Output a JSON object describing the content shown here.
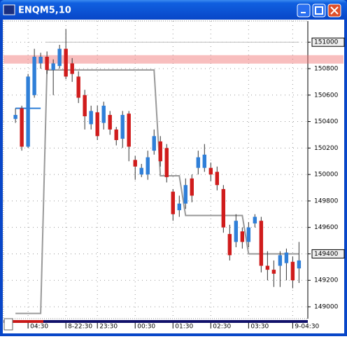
{
  "window_title": "ENQM5,10",
  "chart_data": {
    "type": "candlestick",
    "x": [
      0,
      1,
      2,
      3,
      4,
      5,
      6,
      7,
      8,
      9,
      10,
      11,
      12,
      13,
      14,
      15,
      16,
      17,
      18,
      19,
      20,
      21,
      22,
      23,
      24,
      25,
      26,
      27,
      28,
      29,
      30,
      31,
      32,
      33,
      34,
      35,
      36,
      37,
      38,
      39,
      40,
      41,
      42,
      43,
      44,
      45
    ],
    "open": [
      150420,
      150500,
      150210,
      150600,
      150840,
      150890,
      150790,
      150820,
      150950,
      150840,
      150740,
      150600,
      150380,
      150470,
      150390,
      150450,
      150340,
      150270,
      150460,
      150110,
      150000,
      150000,
      150180,
      150250,
      150200,
      149870,
      149730,
      149780,
      149970,
      150050,
      150050,
      150050,
      150020,
      149890,
      149550,
      149490,
      149570,
      149490,
      149630,
      149650,
      149310,
      149280,
      149310,
      149330,
      149340,
      149290
    ],
    "high": [
      150500,
      150520,
      150760,
      150950,
      150920,
      150930,
      150870,
      150980,
      151100,
      150880,
      150780,
      150640,
      150520,
      150520,
      150550,
      150480,
      150360,
      150480,
      150480,
      150140,
      150080,
      150180,
      150340,
      150290,
      150230,
      149890,
      149840,
      149970,
      150000,
      150180,
      150230,
      150090,
      150060,
      149920,
      149620,
      149700,
      149600,
      149640,
      149700,
      149680,
      149420,
      149350,
      149420,
      149440,
      149380,
      149490
    ],
    "low": [
      150390,
      150180,
      150200,
      150580,
      150800,
      150760,
      150600,
      150800,
      150720,
      150700,
      150540,
      150340,
      150340,
      150260,
      150340,
      150300,
      150220,
      150200,
      150100,
      149960,
      149980,
      149960,
      150150,
      150060,
      149940,
      149650,
      149680,
      149740,
      149790,
      150000,
      150020,
      149950,
      149880,
      149560,
      149350,
      149450,
      149440,
      149450,
      149600,
      149260,
      149200,
      149150,
      149150,
      149200,
      149140,
      149180
    ],
    "close": [
      150450,
      150210,
      150740,
      150890,
      150890,
      150790,
      150840,
      150950,
      150740,
      150760,
      150580,
      150440,
      150480,
      150290,
      150520,
      150340,
      150260,
      150450,
      150210,
      150060,
      150050,
      150130,
      150290,
      150100,
      149980,
      149700,
      149780,
      149920,
      149840,
      150130,
      150150,
      150000,
      149920,
      149600,
      149390,
      149650,
      149490,
      149600,
      149680,
      149310,
      149280,
      149250,
      149390,
      149410,
      149200,
      149350
    ],
    "up_color": "#2f7fd8",
    "down_color": "#d01c1c",
    "lines": [
      {
        "color": "#999999",
        "values": [
          148950,
          148950,
          148950,
          148950,
          148950,
          150790,
          150790,
          150790,
          150790,
          150790,
          150790,
          150790,
          150790,
          150790,
          150790,
          150790,
          150790,
          150790,
          150790,
          150790,
          150790,
          150790,
          150790,
          149990,
          149990,
          149990,
          149990,
          149690,
          149690,
          149690,
          149690,
          149690,
          149690,
          149690,
          149690,
          149690,
          149690,
          149400,
          149400,
          149400,
          149400,
          149400,
          149400,
          149400,
          149400,
          149400
        ]
      },
      {
        "color": "#2f7fd8",
        "values": [
          150500,
          150500,
          150500,
          150500,
          150500,
          null,
          null,
          null,
          null,
          null,
          null,
          null,
          null,
          null,
          null,
          null,
          null,
          null,
          null,
          null,
          null,
          null,
          null,
          null,
          null,
          null,
          null,
          null,
          null,
          null,
          null,
          null,
          null,
          null,
          null,
          null,
          null,
          null,
          null,
          null,
          null,
          null,
          null,
          null,
          null,
          null
        ]
      }
    ],
    "reference_lines": [
      {
        "value": 151000,
        "color": "#bbbbbb"
      }
    ],
    "bands": [
      {
        "value": 150870,
        "color": "rgba(240,110,110,0.45)"
      }
    ],
    "xlim": [
      -1.9,
      46.4
    ],
    "xticks": [
      {
        "value": 2,
        "label": "04:30"
      },
      {
        "value": 8,
        "label": "8-22:30"
      },
      {
        "value": 13,
        "label": "23:30"
      },
      {
        "value": 19,
        "label": "00:30"
      },
      {
        "value": 25,
        "label": "01:30"
      },
      {
        "value": 31,
        "label": "02:30"
      },
      {
        "value": 37,
        "label": "03:30"
      },
      {
        "value": 44,
        "label": "9-04:30"
      }
    ],
    "ylim": [
      148910,
      151160
    ],
    "yticks": [
      149000,
      149200,
      149400,
      149600,
      149800,
      150000,
      150200,
      150400,
      150600,
      150800,
      151000
    ],
    "boxed_yticks": [
      10,
      2
    ],
    "grid": true
  }
}
